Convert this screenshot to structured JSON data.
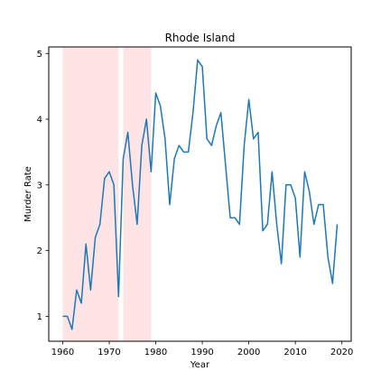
{
  "chart_data": {
    "type": "line",
    "title": "Rhode Island",
    "xlabel": "Year",
    "ylabel": "Murder Rate",
    "xlim": [
      1957,
      2022
    ],
    "ylim": [
      0.62,
      5.1
    ],
    "xticks": [
      1960,
      1970,
      1980,
      1990,
      2000,
      2010,
      2020
    ],
    "yticks": [
      1,
      2,
      3,
      4,
      5
    ],
    "grid": false,
    "shaded_ranges": [
      {
        "start": 1960,
        "end": 1972,
        "color": "#ffe4e6"
      },
      {
        "start": 1973,
        "end": 1979,
        "color": "#ffe4e6"
      }
    ],
    "series": [
      {
        "color": "#1f77b4",
        "x": [
          1960,
          1961,
          1962,
          1963,
          1964,
          1965,
          1966,
          1967,
          1968,
          1969,
          1970,
          1971,
          1972,
          1973,
          1974,
          1975,
          1976,
          1977,
          1978,
          1979,
          1980,
          1981,
          1982,
          1983,
          1984,
          1985,
          1986,
          1987,
          1988,
          1989,
          1990,
          1991,
          1992,
          1993,
          1994,
          1995,
          1996,
          1997,
          1998,
          1999,
          2000,
          2001,
          2002,
          2003,
          2004,
          2005,
          2006,
          2007,
          2008,
          2009,
          2010,
          2011,
          2012,
          2013,
          2014,
          2015,
          2016,
          2017,
          2018,
          2019
        ],
        "y": [
          1.0,
          1.0,
          0.8,
          1.4,
          1.2,
          2.1,
          1.4,
          2.2,
          2.4,
          3.1,
          3.2,
          3.0,
          1.3,
          3.4,
          3.8,
          3.0,
          2.4,
          3.6,
          4.0,
          3.2,
          4.4,
          4.2,
          3.7,
          2.7,
          3.4,
          3.6,
          3.5,
          3.5,
          4.1,
          4.9,
          4.8,
          3.7,
          3.6,
          3.9,
          4.1,
          3.3,
          2.5,
          2.5,
          2.4,
          3.6,
          4.3,
          3.7,
          3.8,
          2.3,
          2.4,
          3.2,
          2.4,
          1.8,
          3.0,
          3.0,
          2.8,
          1.9,
          3.2,
          2.9,
          2.4,
          2.7,
          2.7,
          1.9,
          1.5,
          2.4
        ]
      }
    ]
  }
}
